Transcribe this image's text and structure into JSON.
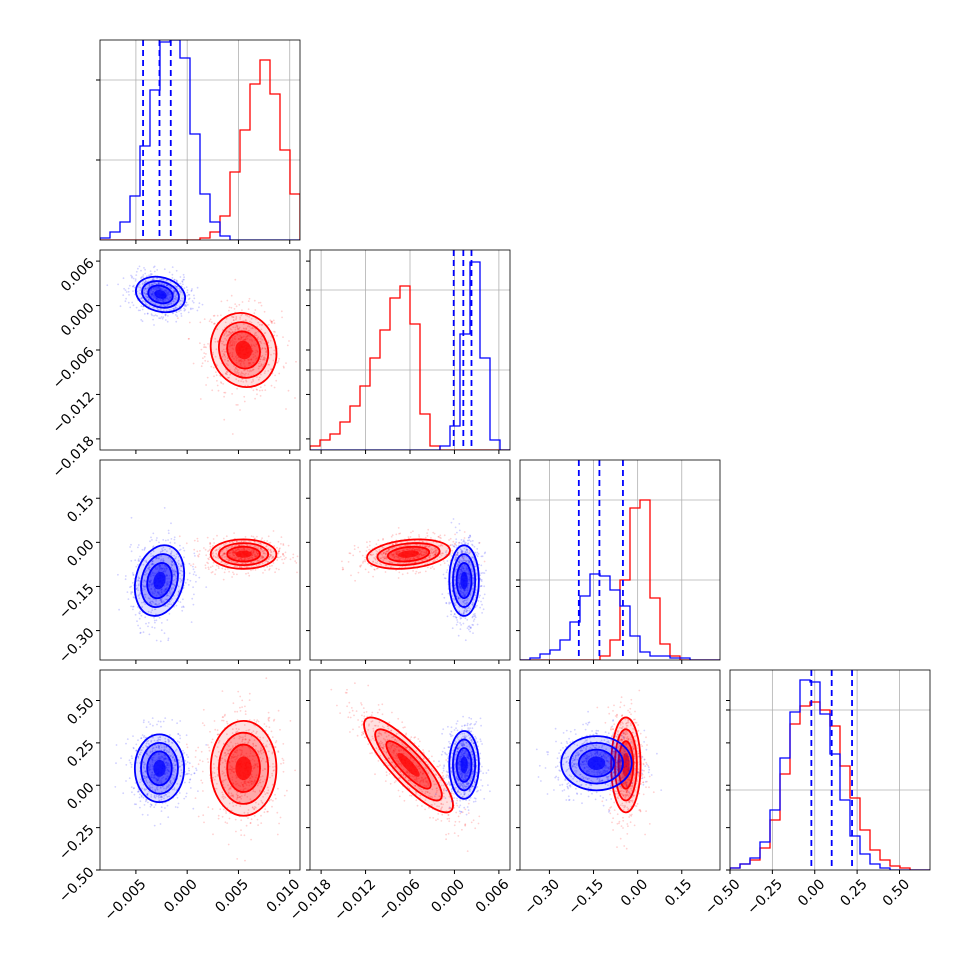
{
  "chart_data": {
    "type": "corner",
    "dimensions": 4,
    "grid": true,
    "colors": {
      "series_a": "#0000ff",
      "series_b": "#ff0000",
      "grid": "#b0b0b0",
      "frame": "#000000"
    },
    "series": [
      {
        "color": "#0000ff",
        "medians": [
          -0.0027,
          0.0015,
          -0.13,
          0.1
        ],
        "quantile_lines": [
          [
            -0.0043,
            -0.0027,
            -0.0016
          ],
          [
            -0.0001,
            0.0012,
            0.0023
          ],
          [
            -0.2,
            -0.13,
            -0.05
          ],
          [
            -0.02,
            0.1,
            0.22
          ]
        ]
      },
      {
        "color": "#ff0000",
        "medians": [
          0.0055,
          -0.0062,
          -0.04,
          0.1
        ]
      }
    ],
    "params": [
      {
        "range": [
          -0.0085,
          0.011
        ],
        "ticks": [
          -0.005,
          0.0,
          0.005,
          0.01
        ],
        "tick_labels": [
          "−0.005",
          "0.000",
          "0.005",
          "0.010"
        ]
      },
      {
        "range": [
          -0.0195,
          0.0075
        ],
        "ticks": [
          -0.018,
          -0.012,
          -0.006,
          0.0,
          0.006
        ],
        "tick_labels": [
          "−0.018",
          "−0.012",
          "−0.006",
          "0.000",
          "0.006"
        ]
      },
      {
        "range": [
          -0.4,
          0.28
        ],
        "ticks": [
          -0.3,
          -0.15,
          0.0,
          0.15
        ],
        "tick_labels": [
          "−0.30",
          "−0.15",
          "0.00",
          "0.15"
        ]
      },
      {
        "range": [
          -0.5,
          0.68
        ],
        "ticks": [
          -0.5,
          -0.25,
          0.0,
          0.25,
          0.5
        ],
        "tick_labels": [
          "−0.50",
          "−0.25",
          "0.00",
          "0.25",
          "0.50"
        ]
      }
    ],
    "histograms": [
      {
        "edges_count": 20,
        "blue": [
          0.01,
          0.04,
          0.09,
          0.22,
          0.47,
          0.75,
          0.99,
          1.0,
          0.91,
          0.53,
          0.23,
          0.09,
          0.02,
          0.0,
          0.0,
          0.0,
          0.0,
          0.0,
          0.0,
          0.0
        ],
        "red": [
          0.0,
          0.0,
          0.0,
          0.0,
          0.0,
          0.0,
          0.0,
          0.0,
          0.0,
          0.0,
          0.01,
          0.04,
          0.12,
          0.34,
          0.55,
          0.78,
          0.9,
          0.73,
          0.45,
          0.23
        ]
      },
      {
        "edges_count": 20,
        "blue": [
          0.0,
          0.0,
          0.0,
          0.0,
          0.0,
          0.0,
          0.0,
          0.0,
          0.0,
          0.0,
          0.0,
          0.0,
          0.0,
          0.02,
          0.12,
          0.58,
          0.94,
          0.46,
          0.05,
          0.0
        ],
        "red": [
          0.02,
          0.05,
          0.08,
          0.14,
          0.22,
          0.32,
          0.46,
          0.6,
          0.76,
          0.82,
          0.63,
          0.18,
          0.02,
          0.0,
          0.0,
          0.0,
          0.0,
          0.0,
          0.0,
          0.0
        ]
      },
      {
        "edges_count": 20,
        "blue": [
          0.0,
          0.01,
          0.03,
          0.05,
          0.1,
          0.19,
          0.32,
          0.43,
          0.42,
          0.35,
          0.27,
          0.12,
          0.04,
          0.02,
          0.02,
          0.01,
          0.01,
          0.0,
          0.0,
          0.0
        ],
        "red": [
          0.0,
          0.0,
          0.0,
          0.0,
          0.0,
          0.0,
          0.0,
          0.0,
          0.02,
          0.1,
          0.4,
          0.76,
          0.8,
          0.31,
          0.08,
          0.02,
          0.0,
          0.0,
          0.0,
          0.0
        ]
      },
      {
        "edges_count": 20,
        "blue": [
          0.01,
          0.03,
          0.06,
          0.14,
          0.3,
          0.56,
          0.79,
          0.95,
          0.94,
          0.78,
          0.58,
          0.35,
          0.17,
          0.08,
          0.03,
          0.01,
          0.0,
          0.0,
          0.0,
          0.0
        ],
        "red": [
          0.01,
          0.03,
          0.05,
          0.11,
          0.25,
          0.48,
          0.73,
          0.82,
          0.84,
          0.8,
          0.72,
          0.52,
          0.36,
          0.2,
          0.1,
          0.05,
          0.02,
          0.01,
          0.0,
          0.0
        ]
      }
    ],
    "pairs": [
      {
        "row": 1,
        "col": 0,
        "blue": {
          "center": [
            -0.0026,
            0.0015
          ],
          "sd": [
            0.0012,
            0.0012
          ],
          "rho": -0.2
        },
        "red": {
          "center": [
            0.0055,
            -0.006
          ],
          "sd": [
            0.0016,
            0.0025
          ],
          "rho": -0.1
        }
      },
      {
        "row": 2,
        "col": 0,
        "blue": {
          "center": [
            -0.0027,
            -0.13
          ],
          "sd": [
            0.0012,
            0.06
          ],
          "rho": 0.2
        },
        "red": {
          "center": [
            0.0055,
            -0.04
          ],
          "sd": [
            0.0016,
            0.025
          ],
          "rho": 0.0
        }
      },
      {
        "row": 2,
        "col": 1,
        "blue": {
          "center": [
            0.0013,
            -0.13
          ],
          "sd": [
            0.001,
            0.06
          ],
          "rho": 0.0
        },
        "red": {
          "center": [
            -0.0062,
            -0.04
          ],
          "sd": [
            0.0028,
            0.025
          ],
          "rho": 0.25
        }
      },
      {
        "row": 3,
        "col": 0,
        "blue": {
          "center": [
            -0.0027,
            0.1
          ],
          "sd": [
            0.0012,
            0.1
          ],
          "rho": 0.0
        },
        "red": {
          "center": [
            0.0055,
            0.1
          ],
          "sd": [
            0.0016,
            0.14
          ],
          "rho": 0.0
        }
      },
      {
        "row": 3,
        "col": 1,
        "blue": {
          "center": [
            0.0013,
            0.12
          ],
          "sd": [
            0.001,
            0.1
          ],
          "rho": 0.0
        },
        "red": {
          "center": [
            -0.0062,
            0.12
          ],
          "sd": [
            0.003,
            0.14
          ],
          "rho": -0.85
        }
      },
      {
        "row": 3,
        "col": 2,
        "blue": {
          "center": [
            -0.14,
            0.13
          ],
          "sd": [
            0.06,
            0.08
          ],
          "rho": 0.0
        },
        "red": {
          "center": [
            -0.04,
            0.12
          ],
          "sd": [
            0.025,
            0.14
          ],
          "rho": 0.0
        }
      }
    ]
  }
}
